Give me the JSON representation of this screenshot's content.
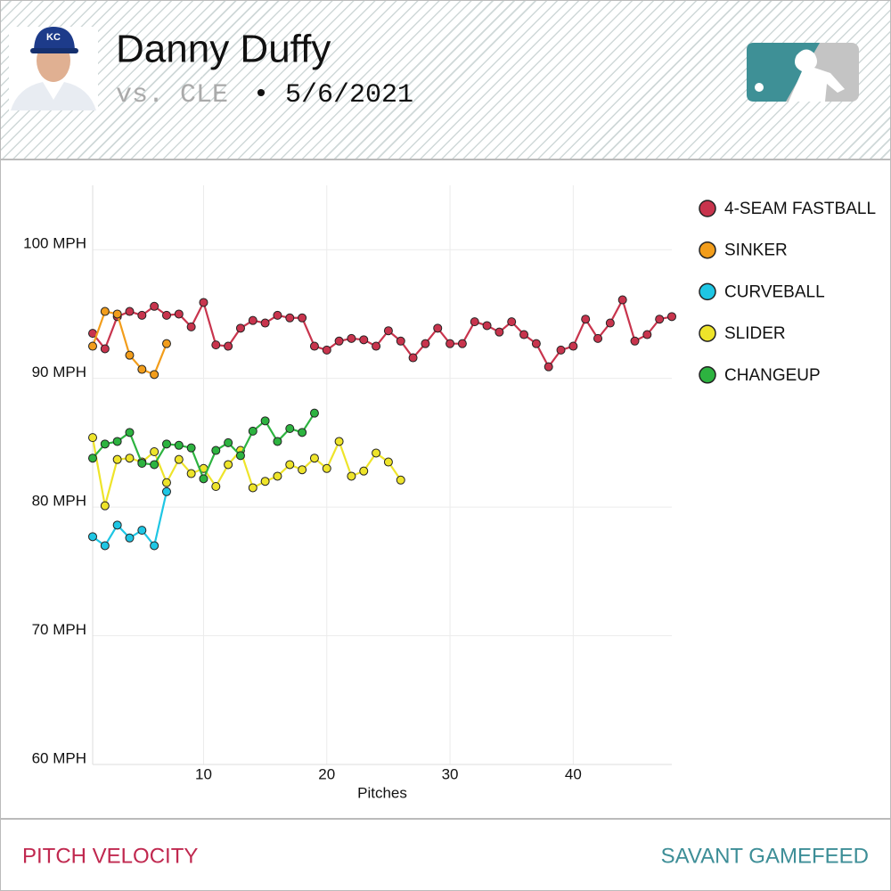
{
  "header": {
    "player": "Danny Duffy",
    "opponent": "vs. CLE",
    "separator": "•",
    "date": "5/6/2021"
  },
  "footer": {
    "left": "PITCH VELOCITY",
    "right": "SAVANT GAMEFEED"
  },
  "chart_data": {
    "type": "line",
    "x_label": "Pitches",
    "xlim": [
      1,
      48
    ],
    "ylim": [
      60,
      105
    ],
    "xticks": [
      10,
      20,
      30,
      40
    ],
    "yticks": [
      {
        "value": 60,
        "label": "60 MPH"
      },
      {
        "value": 70,
        "label": "70 MPH"
      },
      {
        "value": 80,
        "label": "80 MPH"
      },
      {
        "value": 90,
        "label": "90 MPH"
      },
      {
        "value": 100,
        "label": "100 MPH"
      }
    ],
    "grid": true,
    "legend": "right",
    "series": [
      {
        "name": "4-SEAM FASTBALL",
        "color": "#c8344d",
        "x": [
          1,
          2,
          3,
          4,
          5,
          6,
          7,
          8,
          9,
          10,
          11,
          12,
          13,
          14,
          15,
          16,
          17,
          18,
          19,
          20,
          21,
          22,
          23,
          24,
          25,
          26,
          27,
          28,
          29,
          30,
          31,
          32,
          33,
          34,
          35,
          36,
          37,
          38,
          39,
          40,
          41,
          42,
          43,
          44,
          45,
          46,
          47,
          48
        ],
        "values": [
          93.5,
          92.3,
          94.8,
          95.2,
          94.9,
          95.6,
          94.9,
          95.0,
          94.0,
          95.9,
          92.6,
          92.5,
          93.9,
          94.5,
          94.3,
          94.9,
          94.7,
          94.7,
          92.5,
          92.2,
          92.9,
          93.1,
          93.0,
          92.5,
          93.7,
          92.9,
          91.6,
          92.7,
          93.9,
          92.7,
          92.7,
          94.4,
          94.1,
          93.6,
          94.4,
          93.4,
          92.7,
          90.9,
          92.2,
          92.5,
          94.6,
          93.1,
          94.3,
          96.1,
          92.9,
          93.4,
          94.6,
          94.8
        ]
      },
      {
        "name": "SINKER",
        "color": "#f29d1b",
        "x": [
          1,
          2,
          3,
          4,
          5,
          6,
          7
        ],
        "values": [
          92.5,
          95.2,
          95.0,
          91.8,
          90.7,
          90.3,
          92.7
        ]
      },
      {
        "name": "CURVEBALL",
        "color": "#1ec6e4",
        "x": [
          1,
          2,
          3,
          4,
          5,
          6,
          7
        ],
        "values": [
          77.7,
          77.0,
          78.6,
          77.6,
          78.2,
          77.0,
          81.2
        ]
      },
      {
        "name": "SLIDER",
        "color": "#eee42a",
        "x": [
          1,
          2,
          3,
          4,
          5,
          6,
          7,
          8,
          9,
          10,
          11,
          12,
          13,
          14,
          15,
          16,
          17,
          18,
          19,
          20,
          21,
          22,
          23,
          24,
          25,
          26
        ],
        "values": [
          85.4,
          80.1,
          83.7,
          83.8,
          83.5,
          84.3,
          81.9,
          83.7,
          82.6,
          83.0,
          81.6,
          83.3,
          84.4,
          81.5,
          82.0,
          82.4,
          83.3,
          82.9,
          83.8,
          83.0,
          85.1,
          82.4,
          82.8,
          84.2,
          83.5,
          82.1
        ]
      },
      {
        "name": "CHANGEUP",
        "color": "#2db340",
        "x": [
          1,
          2,
          3,
          4,
          5,
          6,
          7,
          8,
          9,
          10,
          11,
          12,
          13,
          14,
          15,
          16,
          17,
          18,
          19
        ],
        "values": [
          83.8,
          84.9,
          85.1,
          85.8,
          83.4,
          83.3,
          84.9,
          84.8,
          84.6,
          82.2,
          84.4,
          85.0,
          84.0,
          85.9,
          86.7,
          85.1,
          86.1,
          85.8,
          87.3
        ]
      }
    ]
  }
}
